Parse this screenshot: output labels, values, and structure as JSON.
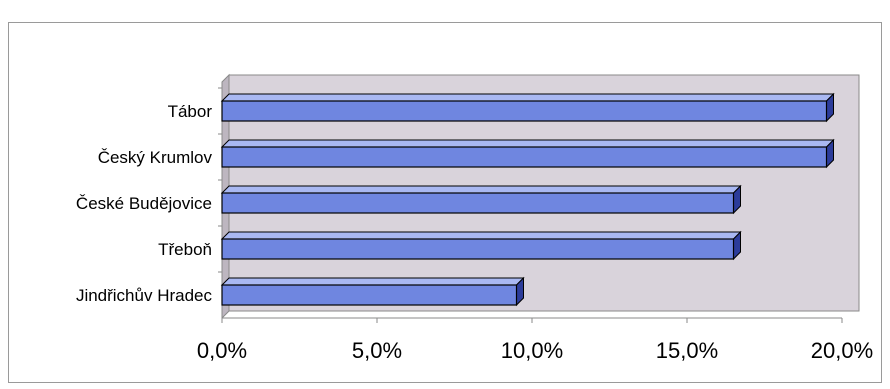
{
  "chart_data": {
    "type": "bar",
    "orientation": "horizontal",
    "style": "3d",
    "categories": [
      "Tábor",
      "Český Krumlov",
      "České Budějovice",
      "Třeboň",
      "Jindřichův Hradec"
    ],
    "values": [
      19.5,
      19.5,
      16.5,
      16.5,
      9.5
    ],
    "xlim": [
      0,
      20
    ],
    "x_ticks": [
      "0,0%",
      "5,0%",
      "10,0%",
      "15,0%",
      "20,0%"
    ],
    "x_tick_values": [
      0,
      5,
      10,
      15,
      20
    ],
    "gridlines": false,
    "legend": false,
    "colors": {
      "bar_front": "#6f86e0",
      "bar_top": "#a9b8f2",
      "bar_side": "#2c3c9a",
      "bar_outline": "#000000",
      "wall": "#d9d3db",
      "wall_edge": "#8a8a8a"
    }
  }
}
